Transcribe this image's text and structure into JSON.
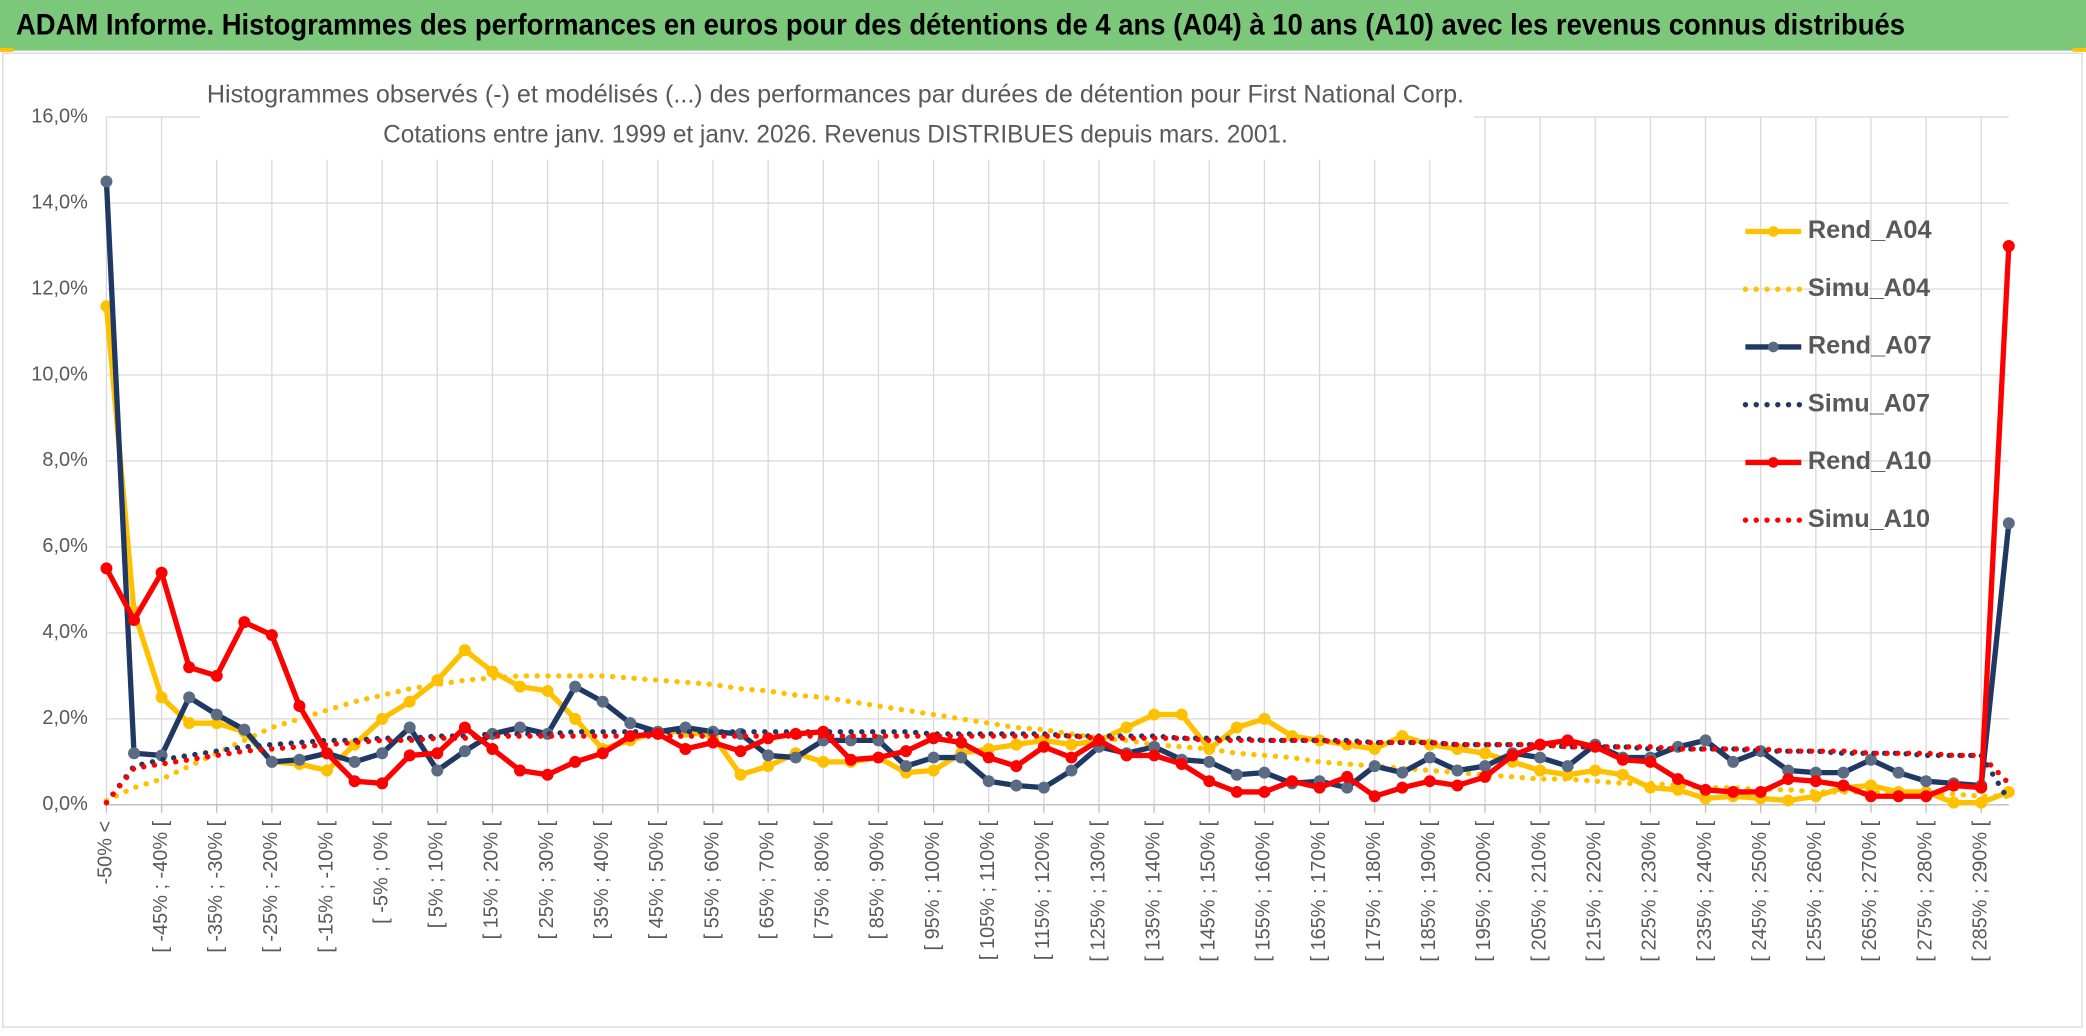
{
  "header": {
    "title": "ADAM Informe. Histogrammes des performances en euros pour des détentions de 4 ans (A04) à 10 ans (A10) avec les revenus connus distribués"
  },
  "chart_data": {
    "type": "line",
    "title": "Histogrammes observés (-) et modélisés (...) des performances par durées de détention pour First National Corp.",
    "subtitle": "Cotations entre janv. 1999 et janv. 2026. Revenus DISTRIBUES depuis mars. 2001.",
    "categories": [
      "-50% <",
      null,
      "[ -45% ; -40% [",
      null,
      "[ -35% ; -30% [",
      null,
      "[ -25% ; -20% [",
      null,
      "[ -15% ; -10% [",
      null,
      "[ -5% ; 0% [",
      null,
      "[ 5% ; 10% [",
      null,
      "[ 15% ; 20% [",
      null,
      "[ 25% ; 30% [",
      null,
      "[ 35% ; 40% [",
      null,
      "[ 45% ; 50% [",
      null,
      "[ 55% ; 60% [",
      null,
      "[ 65% ; 70% [",
      null,
      "[ 75% ; 80% [",
      null,
      "[ 85% ; 90% [",
      null,
      "[ 95% ; 100% [",
      null,
      "[ 105% ; 110% [",
      null,
      "[ 115% ; 120% [",
      null,
      "[ 125% ; 130% [",
      null,
      "[ 135% ; 140% [",
      null,
      "[ 145% ; 150% [",
      null,
      "[ 155% ; 160% [",
      null,
      "[ 165% ; 170% [",
      null,
      "[ 175% ; 180% [",
      null,
      "[ 185% ; 190% [",
      null,
      "[ 195% ; 200% [",
      null,
      "[ 205% ; 210% [",
      null,
      "[ 215% ; 220% [",
      null,
      "[ 225% ; 230% [",
      null,
      "[ 235% ; 240% [",
      null,
      "[ 245% ; 250% [",
      null,
      "[ 255% ; 260% [",
      null,
      "[ 265% ; 270% [",
      null,
      "[ 275% ; 280% [",
      null,
      "[ 285% ; 290% [",
      null
    ],
    "series": [
      {
        "name": "Rend_A04",
        "color": "#ffc000",
        "line_style": "solid",
        "markers": true,
        "values": [
          11.6,
          4.5,
          2.5,
          1.9,
          1.9,
          1.7,
          1.0,
          0.95,
          0.8,
          1.4,
          2.0,
          2.4,
          2.9,
          3.6,
          3.1,
          2.75,
          2.65,
          2.0,
          1.3,
          1.5,
          1.7,
          1.7,
          1.6,
          0.7,
          0.9,
          1.2,
          1.0,
          1.0,
          1.1,
          0.75,
          0.8,
          1.2,
          1.3,
          1.4,
          1.5,
          1.4,
          1.5,
          1.8,
          2.1,
          2.1,
          1.3,
          1.8,
          2.0,
          1.6,
          1.5,
          1.4,
          1.3,
          1.6,
          1.4,
          1.3,
          1.2,
          1.0,
          0.8,
          0.7,
          0.8,
          0.7,
          0.4,
          0.35,
          0.15,
          0.2,
          0.15,
          0.1,
          0.2,
          0.4,
          0.45,
          0.3,
          0.3,
          0.05,
          0.05,
          0.3
        ]
      },
      {
        "name": "Simu_A04",
        "color": "#ffc000",
        "line_style": "dotted",
        "markers": false,
        "values": [
          0.1,
          0.4,
          0.6,
          0.9,
          1.2,
          1.5,
          1.8,
          2.0,
          2.2,
          2.4,
          2.55,
          2.7,
          2.8,
          2.9,
          2.95,
          3.0,
          3.0,
          3.0,
          3.0,
          2.95,
          2.9,
          2.85,
          2.8,
          2.7,
          2.65,
          2.55,
          2.5,
          2.4,
          2.3,
          2.2,
          2.1,
          2.0,
          1.9,
          1.8,
          1.75,
          1.65,
          1.55,
          1.5,
          1.4,
          1.35,
          1.3,
          1.2,
          1.15,
          1.1,
          1.0,
          0.95,
          0.9,
          0.85,
          0.8,
          0.75,
          0.7,
          0.65,
          0.6,
          0.6,
          0.55,
          0.5,
          0.5,
          0.45,
          0.4,
          0.4,
          0.35,
          0.35,
          0.3,
          0.3,
          0.3,
          0.25,
          0.25,
          0.25,
          0.2,
          0.2
        ]
      },
      {
        "name": "Rend_A07",
        "color": "#1f3864",
        "marker_color": "#5b6b84",
        "line_style": "solid",
        "markers": true,
        "values": [
          14.5,
          1.2,
          1.15,
          2.5,
          2.1,
          1.75,
          1.0,
          1.05,
          1.2,
          1.0,
          1.2,
          1.8,
          0.8,
          1.25,
          1.65,
          1.8,
          1.65,
          2.75,
          2.4,
          1.9,
          1.7,
          1.8,
          1.7,
          1.65,
          1.15,
          1.1,
          1.5,
          1.5,
          1.5,
          0.9,
          1.1,
          1.1,
          0.55,
          0.45,
          0.4,
          0.8,
          1.35,
          1.2,
          1.35,
          1.05,
          1.0,
          0.7,
          0.75,
          0.5,
          0.55,
          0.4,
          0.9,
          0.75,
          1.1,
          0.8,
          0.9,
          1.2,
          1.1,
          0.9,
          1.4,
          1.1,
          1.1,
          1.35,
          1.5,
          1.0,
          1.25,
          0.8,
          0.75,
          0.75,
          1.05,
          0.75,
          0.55,
          0.5,
          0.45,
          6.55
        ]
      },
      {
        "name": "Simu_A07",
        "color": "#1f3864",
        "line_style": "dotted",
        "markers": false,
        "values": [
          0.05,
          0.9,
          1.05,
          1.15,
          1.25,
          1.35,
          1.4,
          1.45,
          1.5,
          1.5,
          1.55,
          1.55,
          1.6,
          1.6,
          1.65,
          1.65,
          1.65,
          1.7,
          1.7,
          1.7,
          1.7,
          1.7,
          1.7,
          1.7,
          1.7,
          1.7,
          1.7,
          1.7,
          1.7,
          1.7,
          1.65,
          1.65,
          1.65,
          1.65,
          1.65,
          1.6,
          1.6,
          1.6,
          1.6,
          1.55,
          1.55,
          1.55,
          1.5,
          1.5,
          1.5,
          1.5,
          1.45,
          1.45,
          1.45,
          1.4,
          1.4,
          1.4,
          1.4,
          1.35,
          1.35,
          1.35,
          1.3,
          1.3,
          1.3,
          1.3,
          1.25,
          1.25,
          1.25,
          1.2,
          1.2,
          1.2,
          1.15,
          1.15,
          1.15,
          0.1
        ]
      },
      {
        "name": "Rend_A10",
        "color": "#ff0000",
        "line_style": "solid",
        "markers": true,
        "values": [
          5.5,
          4.3,
          5.4,
          3.2,
          3.0,
          4.25,
          3.95,
          2.3,
          1.2,
          0.55,
          0.5,
          1.15,
          1.2,
          1.8,
          1.3,
          0.8,
          0.7,
          1.0,
          1.2,
          1.6,
          1.65,
          1.3,
          1.45,
          1.25,
          1.55,
          1.65,
          1.7,
          1.05,
          1.1,
          1.25,
          1.55,
          1.45,
          1.1,
          0.9,
          1.35,
          1.1,
          1.5,
          1.15,
          1.15,
          0.95,
          0.55,
          0.3,
          0.3,
          0.55,
          0.4,
          0.65,
          0.2,
          0.4,
          0.55,
          0.45,
          0.65,
          1.15,
          1.4,
          1.5,
          1.35,
          1.05,
          1.0,
          0.6,
          0.35,
          0.3,
          0.3,
          0.6,
          0.55,
          0.45,
          0.2,
          0.2,
          0.2,
          0.45,
          0.4,
          13.0
        ]
      },
      {
        "name": "Simu_A10",
        "color": "#ff0000",
        "line_style": "dotted",
        "markers": false,
        "values": [
          0.05,
          0.85,
          0.95,
          1.05,
          1.15,
          1.25,
          1.3,
          1.35,
          1.4,
          1.45,
          1.5,
          1.5,
          1.55,
          1.55,
          1.6,
          1.6,
          1.6,
          1.6,
          1.6,
          1.6,
          1.6,
          1.6,
          1.6,
          1.6,
          1.6,
          1.6,
          1.6,
          1.6,
          1.6,
          1.6,
          1.6,
          1.6,
          1.6,
          1.6,
          1.6,
          1.6,
          1.55,
          1.55,
          1.55,
          1.55,
          1.5,
          1.5,
          1.5,
          1.5,
          1.5,
          1.45,
          1.45,
          1.45,
          1.45,
          1.4,
          1.4,
          1.4,
          1.4,
          1.35,
          1.35,
          1.35,
          1.35,
          1.3,
          1.3,
          1.3,
          1.3,
          1.25,
          1.25,
          1.25,
          1.2,
          1.2,
          1.2,
          1.15,
          1.15,
          0.5
        ]
      }
    ],
    "ylim": [
      0,
      16
    ],
    "yticks": [
      {
        "value": 0,
        "label": "0,0%"
      },
      {
        "value": 2,
        "label": "2,0%"
      },
      {
        "value": 4,
        "label": "4,0%"
      },
      {
        "value": 6,
        "label": "6,0%"
      },
      {
        "value": 8,
        "label": "8,0%"
      },
      {
        "value": 10,
        "label": "10,0%"
      },
      {
        "value": 12,
        "label": "12,0%"
      },
      {
        "value": 14,
        "label": "14,0%"
      },
      {
        "value": 16,
        "label": "16,0%"
      }
    ],
    "grid": true,
    "legend": "right"
  }
}
